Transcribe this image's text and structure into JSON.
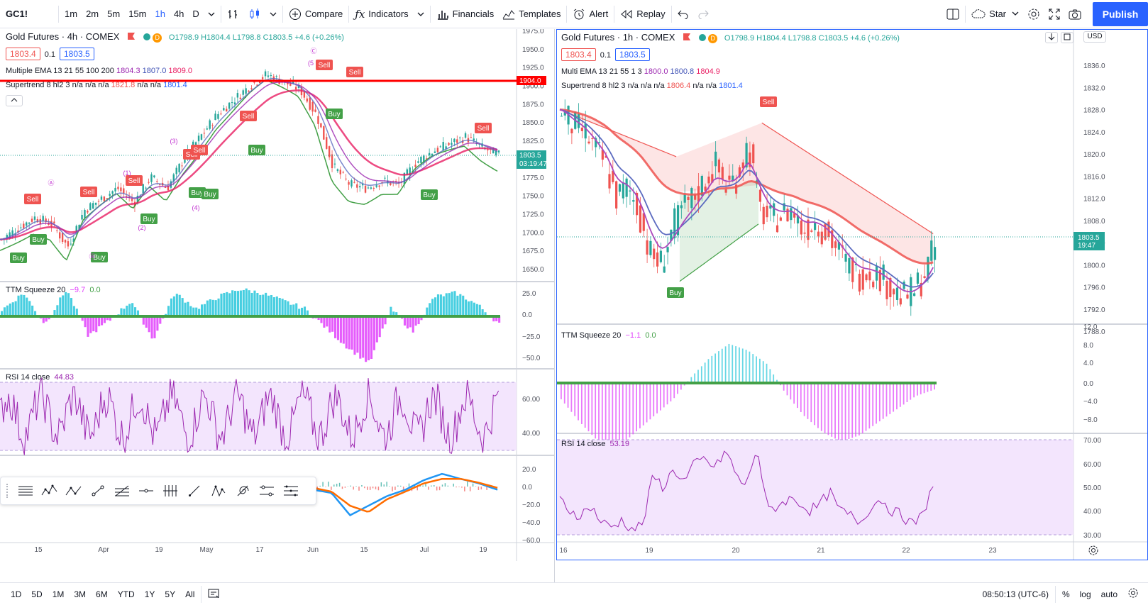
{
  "toolbar": {
    "symbol": "GC1!",
    "intervals": [
      "1m",
      "2m",
      "5m",
      "15m",
      "1h",
      "4h",
      "D"
    ],
    "selected_interval": "1h",
    "compare": "Compare",
    "indicators": "Indicators",
    "financials": "Financials",
    "templates": "Templates",
    "alert": "Alert",
    "replay": "Replay",
    "star": "Star",
    "publish": "Publish"
  },
  "left": {
    "title": "Gold Futures · 4h · COMEX",
    "ohlc": "O1798.9 H1804.4 L1798.8 C1803.5 +4.6 (+0.26%)",
    "bid": "1803.4",
    "step": "0.1",
    "ask": "1803.5",
    "ema": {
      "label": "Multiple EMA 13 21 55 100 200",
      "values": [
        "1804.3",
        "1807.0",
        "1809.0"
      ]
    },
    "st": {
      "label": "Supertrend 8 hl2 3",
      "values": [
        "n/a",
        "n/a",
        "n/a",
        "1821.8",
        "n/a",
        "n/a",
        "1801.4"
      ]
    },
    "ttm": {
      "label": "TTM Squeeze 20",
      "v1": "−9.7",
      "v2": "0.0"
    },
    "rsi": {
      "label": "RSI 14 close",
      "value": "44.83"
    },
    "price_ticks": [
      "1975.0",
      "1950.0",
      "1925.0",
      "1900.0",
      "1875.0",
      "1850.0",
      "1825.0",
      "1800.0",
      "1775.0",
      "1750.0",
      "1725.0",
      "1700.0",
      "1675.0",
      "1650.0"
    ],
    "ttm_ticks": [
      "25.0",
      "0.0",
      "−25.0",
      "−50.0"
    ],
    "rsi_ticks": [
      "60.00",
      "40.00"
    ],
    "macd_ticks": [
      "20.0",
      "0.0",
      "−20.0",
      "−40.0",
      "−60.0"
    ],
    "x_ticks": [
      "15",
      "Apr",
      "19",
      "May",
      "17",
      "Jun",
      "15",
      "Jul",
      "19"
    ],
    "red_line_price": "1904.0",
    "last_price": "1803.5",
    "countdown": "03:19:47",
    "signals": [
      {
        "t": "Buy",
        "x": 26,
        "y": 364
      },
      {
        "t": "Buy",
        "x": 54,
        "y": 338
      },
      {
        "t": "Sell",
        "x": 46,
        "y": 281
      },
      {
        "t": "Sell",
        "x": 125,
        "y": 271
      },
      {
        "t": "Buy",
        "x": 140,
        "y": 363
      },
      {
        "t": "Sell",
        "x": 189,
        "y": 255
      },
      {
        "t": "Buy",
        "x": 210,
        "y": 309
      },
      {
        "t": "Sell",
        "x": 270,
        "y": 218
      },
      {
        "t": "Sell",
        "x": 281,
        "y": 212
      },
      {
        "t": "Buy",
        "x": 278,
        "y": 272
      },
      {
        "t": "Buy",
        "x": 296,
        "y": 274
      },
      {
        "t": "Sell",
        "x": 350,
        "y": 164
      },
      {
        "t": "Buy",
        "x": 362,
        "y": 212
      },
      {
        "t": "Sell",
        "x": 457,
        "y": 92
      },
      {
        "t": "Sell",
        "x": 500,
        "y": 102
      },
      {
        "t": "Buy",
        "x": 471,
        "y": 161
      },
      {
        "t": "Buy",
        "x": 605,
        "y": 275
      },
      {
        "t": "Sell",
        "x": 681,
        "y": 181
      }
    ],
    "wave_labels": [
      {
        "t": "Ⓐ",
        "x": 72,
        "y": 257
      },
      {
        "t": "(1)",
        "x": 179,
        "y": 243
      },
      {
        "t": "(2)",
        "x": 200,
        "y": 320
      },
      {
        "t": "(3)",
        "x": 245,
        "y": 198
      },
      {
        "t": "(4)",
        "x": 276,
        "y": 292
      },
      {
        "t": "Ⓒ",
        "x": 442,
        "y": 71
      },
      {
        "t": "(5",
        "x": 438,
        "y": 88
      },
      {
        "t": "Ⓑ",
        "x": 130,
        "y": 361
      }
    ]
  },
  "right": {
    "title": "Gold Futures · 1h · COMEX",
    "ohlc": "O1798.9 H1804.4 L1798.8 C1803.5 +4.6 (+0.26%)",
    "bid": "1803.4",
    "step": "0.1",
    "ask": "1803.5",
    "ema": {
      "label": "Multi EMA 13 21 55 1 3",
      "values": [
        "1800.0",
        "1800.8",
        "1804.9"
      ]
    },
    "st": {
      "label": "Supertrend 8 hl2 3",
      "values": [
        "n/a",
        "n/a",
        "n/a",
        "1806.4",
        "n/a",
        "n/a",
        "1801.4"
      ]
    },
    "ttm": {
      "label": "TTM Squeeze 20",
      "v1": "−1.1",
      "v2": "0.0"
    },
    "rsi": {
      "label": "RSI 14 close",
      "value": "53.19"
    },
    "currency": "USD",
    "price_ticks": [
      "1836.0",
      "1832.0",
      "1828.0",
      "1824.0",
      "1820.0",
      "1816.0",
      "1812.0",
      "1808.0",
      "1804.0",
      "1800.0",
      "1796.0",
      "1792.0",
      "1788.0"
    ],
    "ttm_ticks": [
      "12.0",
      "8.0",
      "4.0",
      "0.0",
      "−4.0",
      "−8.0"
    ],
    "rsi_ticks": [
      "70.00",
      "60.00",
      "50.00",
      "40.00",
      "30.00"
    ],
    "x_ticks": [
      "16",
      "19",
      "20",
      "21",
      "22",
      "23"
    ],
    "last_price": "1803.5",
    "countdown": "19:47",
    "signals": [
      {
        "t": "Sell",
        "x": 1082,
        "y": 143
      },
      {
        "t": "Buy",
        "x": 951,
        "y": 412
      }
    ]
  },
  "bottom": {
    "ranges": [
      "1D",
      "5D",
      "1M",
      "3M",
      "6M",
      "YTD",
      "1Y",
      "5Y",
      "All"
    ],
    "time": "08:50:13 (UTC-6)",
    "pct": "%",
    "log": "log",
    "auto": "auto"
  },
  "colors": {
    "accent": "#2962ff",
    "up": "#26a69a",
    "down": "#ef5350",
    "buy": "#43a047",
    "sell": "#ef5350",
    "rsi": "#9c27b0",
    "rsi_bg": "#f3e5fd"
  }
}
